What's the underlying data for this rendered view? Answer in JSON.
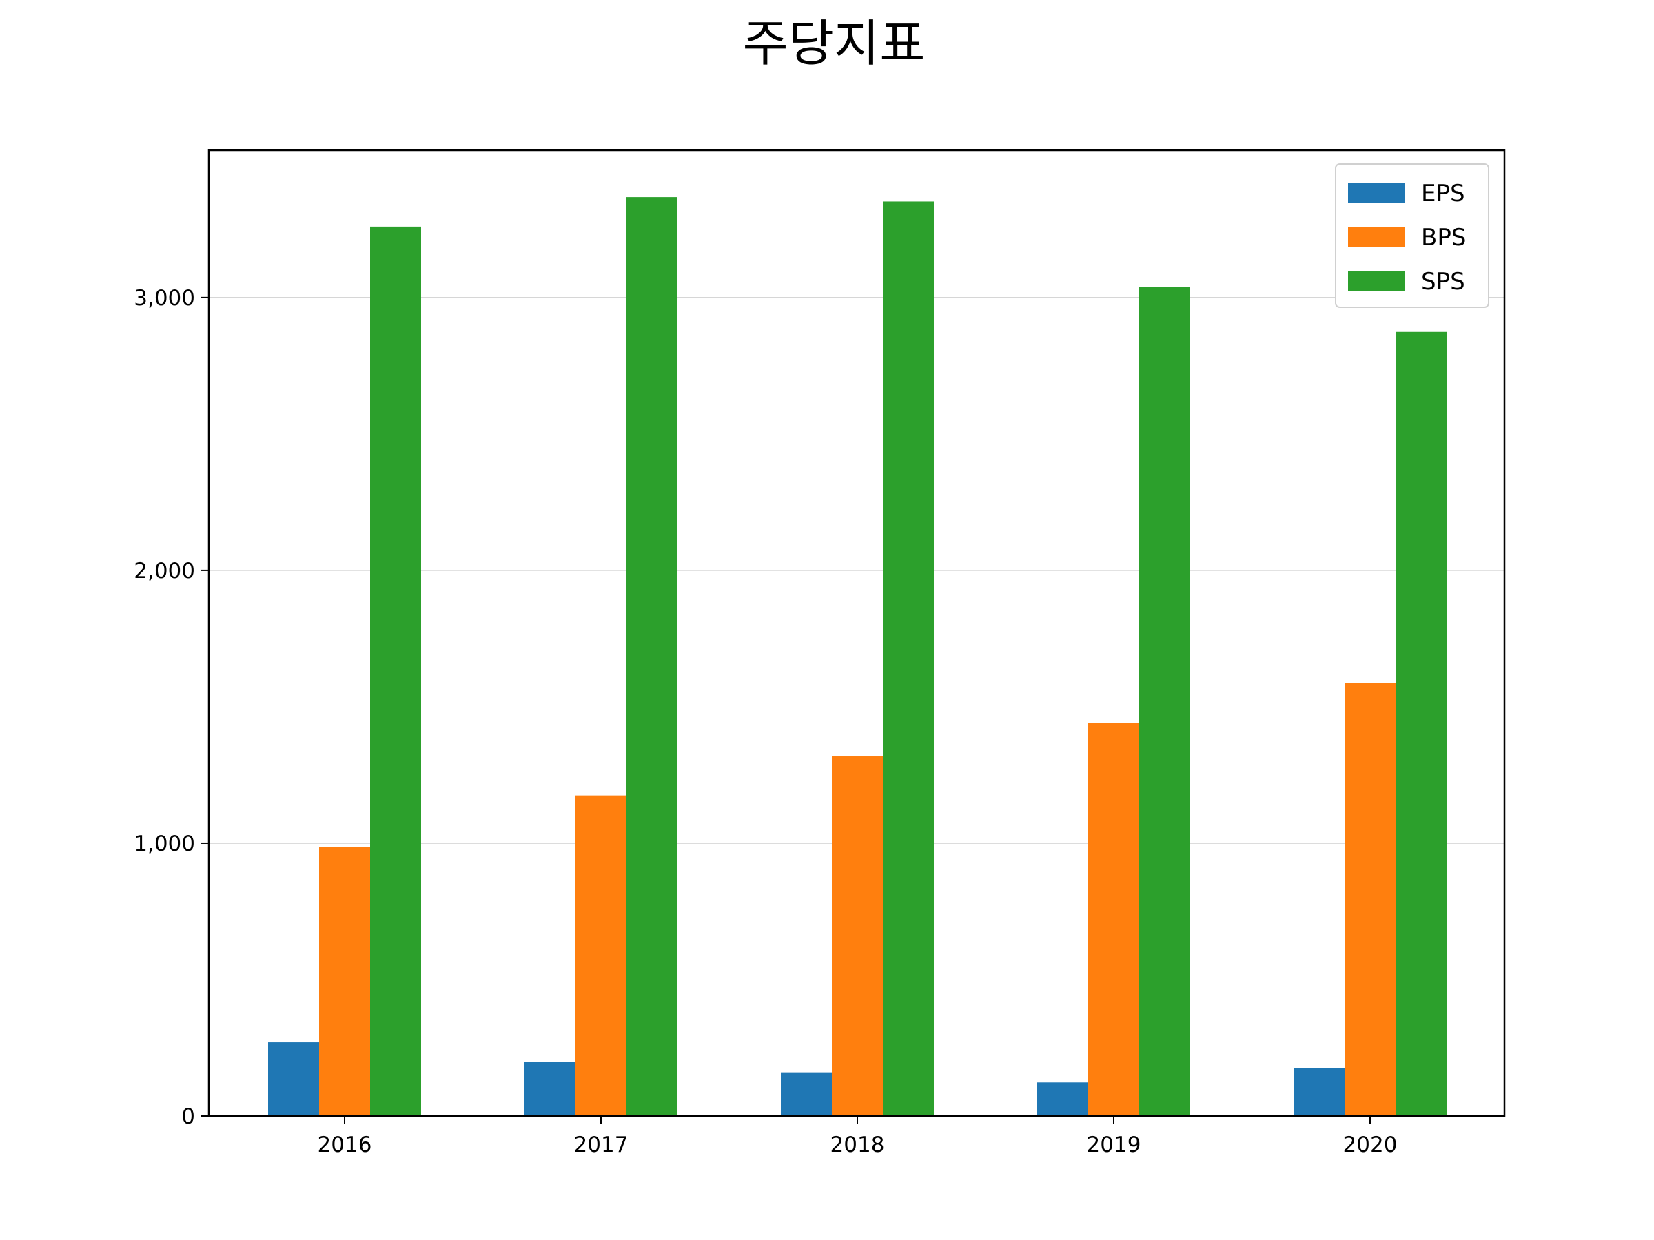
{
  "chart_data": {
    "type": "bar",
    "title": "주당지표",
    "xlabel": "",
    "ylabel": "",
    "categories": [
      "2016",
      "2017",
      "2018",
      "2019",
      "2020"
    ],
    "series": [
      {
        "name": "EPS",
        "color": "#1f77b4",
        "values": [
          270,
          197,
          160,
          123,
          176
        ]
      },
      {
        "name": "BPS",
        "color": "#ff7f0e",
        "values": [
          985,
          1175,
          1318,
          1440,
          1587
        ]
      },
      {
        "name": "SPS",
        "color": "#2ca02c",
        "values": [
          3260,
          3368,
          3352,
          3040,
          2874
        ]
      }
    ],
    "ylim": [
      0,
      3540
    ],
    "yticks": [
      0,
      1000,
      2000,
      3000
    ],
    "ytick_labels": [
      "0",
      "1,000",
      "2,000",
      "3,000"
    ],
    "grid": "horizontal",
    "legend_position": "top-right"
  }
}
